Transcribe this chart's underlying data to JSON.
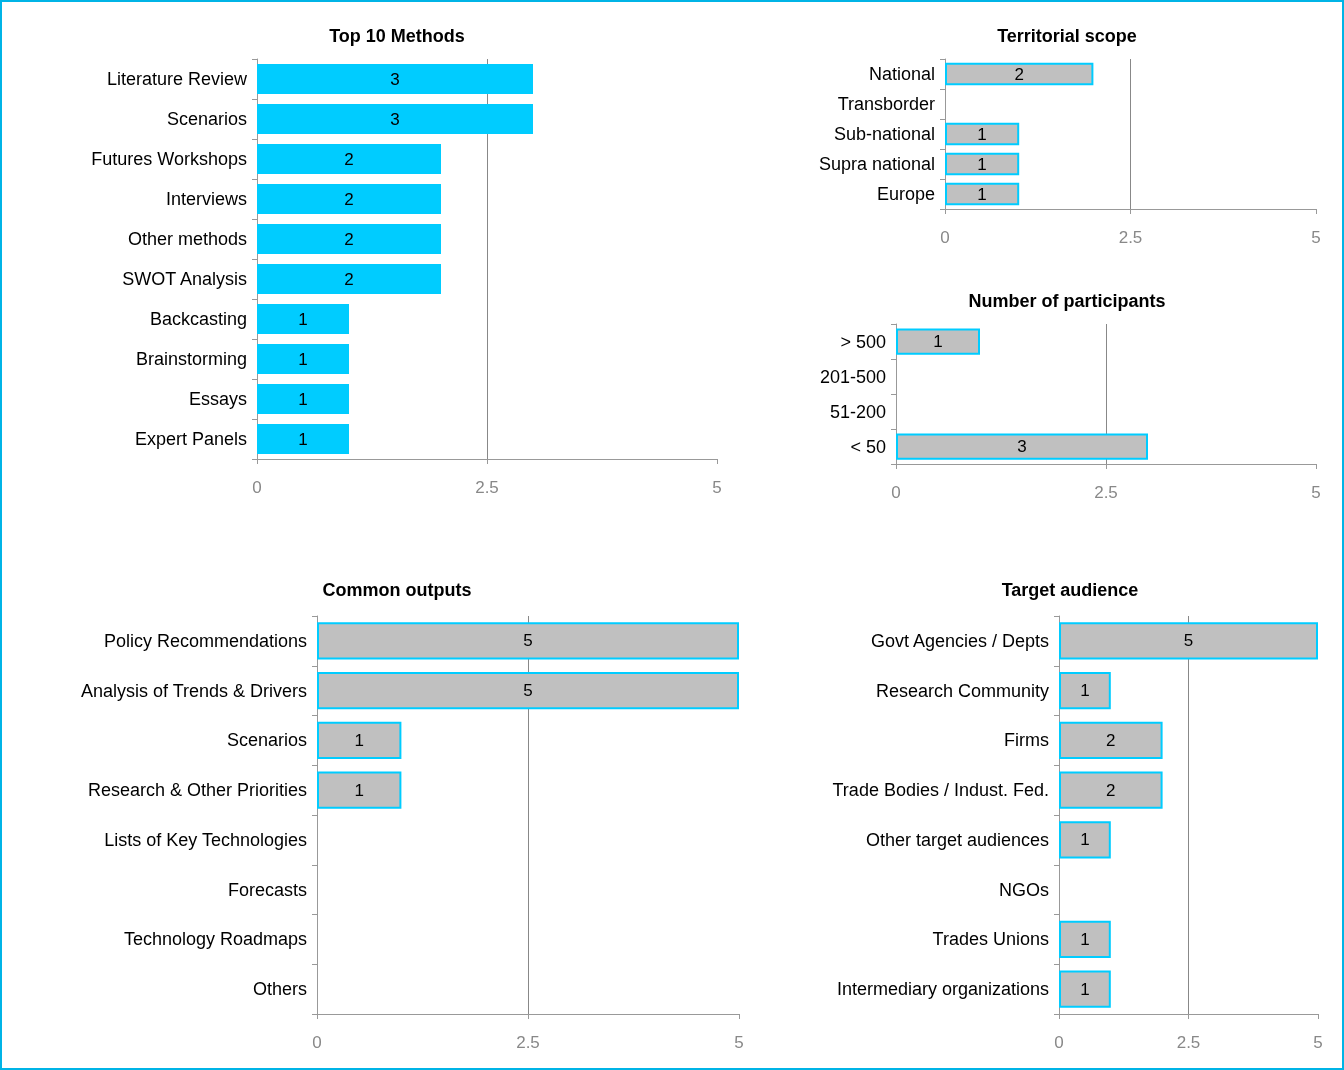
{
  "chart_data": [
    {
      "type": "bar",
      "orientation": "horizontal",
      "title": "Top 10 Methods",
      "categories": [
        "Literature Review",
        "Scenarios",
        "Futures Workshops",
        "Interviews",
        "Other methods",
        "SWOT Analysis",
        "Backcasting",
        "Brainstorming",
        "Essays",
        "Expert Panels"
      ],
      "values": [
        3,
        3,
        2,
        2,
        2,
        2,
        1,
        1,
        1,
        1
      ],
      "color": "#00ccff",
      "data_labels": true,
      "xlim": [
        0,
        5
      ],
      "xticks": [
        0,
        2.5,
        5
      ],
      "grid": "x"
    },
    {
      "type": "bar",
      "orientation": "horizontal",
      "title": "Territorial scope",
      "categories": [
        "National",
        "Transborder",
        "Sub-national",
        "Supra national",
        "Europe"
      ],
      "values": [
        2,
        0,
        1,
        1,
        1
      ],
      "value_labels": [
        "2",
        null,
        "1",
        "1",
        "1"
      ],
      "color": "#c0c0c0",
      "xlim": [
        0,
        5
      ],
      "xticks": [
        0,
        2.5,
        5
      ],
      "grid": "x"
    },
    {
      "type": "bar",
      "orientation": "horizontal",
      "title": "Number of participants",
      "categories": [
        "> 500",
        "201-500",
        "51-200",
        "< 50"
      ],
      "values": [
        1,
        0,
        0,
        3
      ],
      "value_labels": [
        "1",
        null,
        null,
        "3"
      ],
      "color": "#c0c0c0",
      "xlim": [
        0,
        5
      ],
      "xticks": [
        0,
        2.5,
        5
      ],
      "grid": "x"
    },
    {
      "type": "bar",
      "orientation": "horizontal",
      "title": "Common outputs",
      "categories": [
        "Policy Recommendations",
        "Analysis of Trends & Drivers",
        "Scenarios",
        "Research & Other Priorities",
        "Lists of Key Technologies",
        "Forecasts",
        "Technology Roadmaps",
        "Others"
      ],
      "values": [
        5,
        5,
        1,
        1,
        0,
        0,
        0,
        0
      ],
      "value_labels": [
        "5",
        "5",
        "1",
        "1",
        null,
        null,
        null,
        null
      ],
      "color": "#c0c0c0",
      "xlim": [
        0,
        5
      ],
      "xticks": [
        0,
        2.5,
        5
      ],
      "grid": "x"
    },
    {
      "type": "bar",
      "orientation": "horizontal",
      "title": "Target audience",
      "categories": [
        "Govt Agencies / Depts",
        "Research Community",
        "Firms",
        "Trade Bodies / Indust. Fed.",
        "Other target audiences",
        "NGOs",
        "Trades Unions",
        "Intermediary organizations"
      ],
      "values": [
        5,
        1,
        2,
        2,
        1,
        0,
        1,
        1
      ],
      "value_labels": [
        "5",
        "1",
        "2",
        "2",
        "1",
        null,
        "1",
        "1"
      ],
      "color": "#c0c0c0",
      "xlim": [
        0,
        5
      ],
      "xticks": [
        0,
        2.5,
        5
      ],
      "grid": "x"
    }
  ]
}
